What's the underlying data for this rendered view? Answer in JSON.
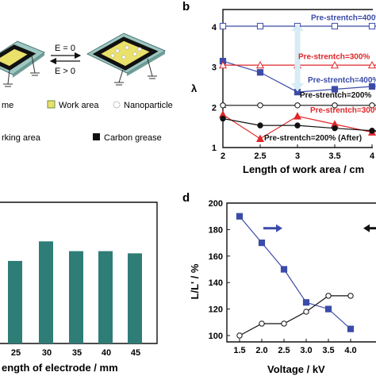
{
  "colors": {
    "blue": "#3b4ba8",
    "red": "#e0262a",
    "black": "#111111",
    "bar": "#2e7d77",
    "plate": "#9ec7c2",
    "film": "#e9e16a"
  },
  "panel_a": {
    "e_zero": "E = 0",
    "e_pos": "E > 0",
    "legend": {
      "frame": "me",
      "work_area": "Work area",
      "nanoparticle": "Nanoparticle",
      "working_area": "rking area",
      "carbon_grease": "Carbon grease"
    }
  },
  "chart_data": [
    {
      "panel": "b",
      "type": "line",
      "title": "",
      "xlabel": "Length of work area / cm",
      "ylabel": "λ",
      "xlim": [
        2.0,
        4.5
      ],
      "ylim": [
        1,
        4.4
      ],
      "x_ticks": [
        2,
        2.5,
        3,
        3.5,
        4
      ],
      "y_ticks": [
        1,
        2,
        3,
        4
      ],
      "grid": false,
      "series": [
        {
          "name": "Pre-strentch=400%",
          "color": "#3b4ba8",
          "marker": "square-open",
          "x": [
            2.0,
            2.5,
            3.0,
            3.5,
            4.0,
            4.5
          ],
          "y": [
            4.02,
            4.02,
            4.02,
            4.02,
            4.02,
            4.02
          ]
        },
        {
          "name": "Pre-strentch=400%",
          "color": "#3b4ba8",
          "marker": "square",
          "x": [
            2.0,
            2.5,
            3.0,
            3.5,
            4.0,
            4.5
          ],
          "y": [
            3.15,
            2.87,
            2.38,
            2.45,
            2.52,
            2.55
          ]
        },
        {
          "name": "Pre-strentch=300%",
          "color": "#e0262a",
          "marker": "triangle-open",
          "x": [
            2.0,
            2.5,
            3.0,
            3.5,
            4.0,
            4.5
          ],
          "y": [
            3.05,
            3.05,
            3.05,
            3.05,
            3.05,
            3.05
          ]
        },
        {
          "name": "Pre-strentch=300%",
          "color": "#e0262a",
          "marker": "triangle",
          "x": [
            2.0,
            2.5,
            3.0,
            3.5,
            4.0,
            4.5
          ],
          "y": [
            1.82,
            1.22,
            1.78,
            1.58,
            1.38,
            1.55
          ]
        },
        {
          "name": "Pre-strentch=200%",
          "color": "#111111",
          "marker": "circle-open",
          "x": [
            2.0,
            2.5,
            3.0,
            3.5,
            4.0,
            4.5
          ],
          "y": [
            2.05,
            2.05,
            2.05,
            2.05,
            2.05,
            2.05
          ]
        },
        {
          "name": "Pre-strentch=200% (After)",
          "color": "#111111",
          "marker": "circle",
          "x": [
            2.0,
            2.5,
            3.0,
            3.5,
            4.0,
            4.5
          ],
          "y": [
            1.72,
            1.55,
            1.55,
            1.48,
            1.42,
            1.4
          ]
        }
      ],
      "annotations": [
        "Pre-strentch=400%",
        "Pre-strentch=300%",
        "Pre-strentch=400%",
        "Pre-strentch=200%",
        "Pre-strentch=300%",
        "Pre-strentch=200% (After)"
      ]
    },
    {
      "panel": "c",
      "type": "bar",
      "xlabel": "Length of electrode / mm",
      "categories": [
        "25",
        "30",
        "35",
        "40",
        "45"
      ],
      "values": [
        0.76,
        0.94,
        0.85,
        0.85,
        0.83
      ],
      "ylim": [
        0,
        1.3
      ]
    },
    {
      "panel": "d",
      "type": "line",
      "xlabel": "Voltage / kV",
      "ylabel": "L/L' / %",
      "xlim": [
        1.25,
        4.1
      ],
      "ylim": [
        95,
        200
      ],
      "x_ticks": [
        1.5,
        2.0,
        2.5,
        3.0,
        3.5,
        4.0
      ],
      "y_ticks": [
        100,
        120,
        140,
        160,
        180,
        200
      ],
      "grid": false,
      "series": [
        {
          "color": "#3b4ba8",
          "marker": "square",
          "axis": "left",
          "x": [
            1.5,
            2.0,
            2.5,
            3.0,
            3.5,
            4.0
          ],
          "y": [
            190,
            170,
            150,
            125,
            120,
            105
          ]
        },
        {
          "color": "#111111",
          "marker": "circle-open",
          "axis": "right",
          "x": [
            1.5,
            2.0,
            2.5,
            3.0,
            3.5,
            4.0
          ],
          "y": [
            100,
            109,
            109,
            118,
            130,
            130
          ]
        }
      ]
    }
  ],
  "labels": {
    "b": "b",
    "c_xlabel_visible": "ength of electrode / mm",
    "b_xlabel_visible": "Length of work area / cm",
    "d": "d",
    "d_ylabel": "L/L' / %",
    "d_xlabel": "Voltage / kV",
    "b_ylabel": "λ"
  }
}
